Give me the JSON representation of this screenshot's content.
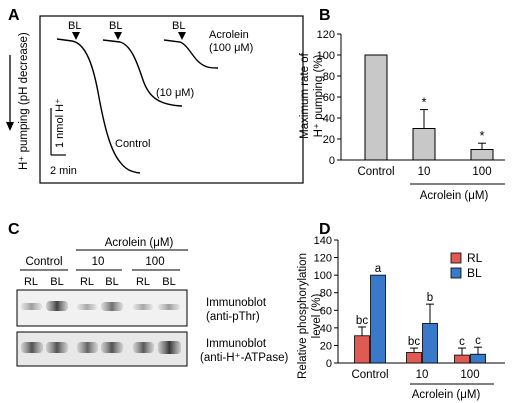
{
  "panels": {
    "A": {
      "letter": "A",
      "yaxis_label": "H⁺ pumping (pH decrease)",
      "scalebar_y": "1 nmol H⁺",
      "scalebar_x": "2 min",
      "bl_label": "BL",
      "traces": [
        {
          "label": "Control"
        },
        {
          "label": "(10 μM)"
        },
        {
          "label": "Acrolein",
          "label2": "(100 μM)"
        }
      ]
    },
    "B": {
      "letter": "B",
      "ylabel": [
        "Maximum rate of",
        "H⁺ pumping (%)"
      ],
      "yticks": [
        "0",
        "20",
        "40",
        "60",
        "80",
        "100",
        "120"
      ],
      "xlabel": "Acrolein (μM)"
    },
    "C": {
      "letter": "C",
      "header": "Acrolein (μM)",
      "groups": [
        "Control",
        "10",
        "100"
      ],
      "lanes": [
        "RL",
        "BL",
        "RL",
        "BL",
        "RL",
        "BL"
      ],
      "blot1_label": [
        "Immunoblot",
        "(anti-pThr)"
      ],
      "blot2_label": [
        "Immunoblot",
        "(anti-H⁺-ATPase)"
      ]
    },
    "D": {
      "letter": "D",
      "ylabel": [
        "Relative phosphorylation",
        "level (%)"
      ],
      "yticks": [
        "0",
        "20",
        "40",
        "60",
        "80",
        "100",
        "120",
        "140"
      ],
      "xlabel": "Acrolein (μM)"
    }
  },
  "chart_data": [
    {
      "type": "bar",
      "panel": "B",
      "categories": [
        "Control",
        "10",
        "100"
      ],
      "values": [
        100,
        30,
        10
      ],
      "errors": [
        0,
        18,
        6
      ],
      "annotations": [
        "",
        "*",
        "*"
      ],
      "ylabel": "Maximum rate of H⁺ pumping (%)",
      "xlabel": "Acrolein (μM)",
      "ylim": [
        0,
        120
      ],
      "color": "#c8c8c8"
    },
    {
      "type": "bar",
      "panel": "D",
      "categories": [
        "Control",
        "10",
        "100"
      ],
      "series": [
        {
          "name": "RL",
          "color": "#e05a55",
          "values": [
            31,
            12,
            9
          ],
          "errors": [
            10,
            5,
            8
          ],
          "annotations": [
            "bc",
            "bc",
            "c"
          ]
        },
        {
          "name": "BL",
          "color": "#3a78c9",
          "values": [
            100,
            45,
            10
          ],
          "errors": [
            0,
            22,
            8
          ],
          "annotations": [
            "a",
            "b",
            "c"
          ]
        }
      ],
      "ylabel": "Relative phosphorylation level (%)",
      "xlabel": "Acrolein (μM)",
      "ylim": [
        0,
        140
      ],
      "legend": "top-right"
    }
  ]
}
